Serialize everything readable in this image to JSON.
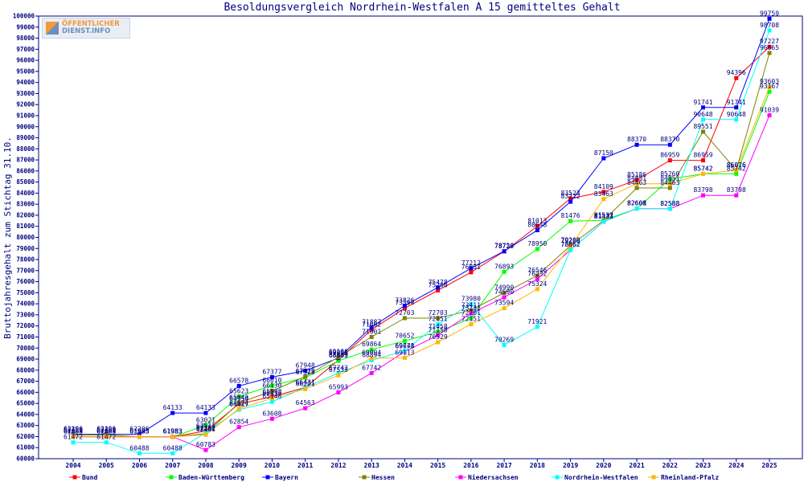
{
  "chart_data": {
    "type": "line",
    "title": "Besoldungsvergleich Nordrhein-Westfalen A 15 gemitteltes Gehalt",
    "ylabel": "Bruttojahresgehalt zum Stichtag 31.10.",
    "xlabel": "",
    "ylim": [
      60000,
      100000
    ],
    "ytick_step": 1000,
    "grid": false,
    "legend_position": "bottom",
    "x": [
      "2004",
      "2005",
      "2006",
      "2007",
      "2008",
      "2009",
      "2010",
      "2011",
      "2012",
      "2013",
      "2014",
      "2015",
      "2016",
      "2017",
      "2018",
      "2019",
      "2020",
      "2021",
      "2022",
      "2023",
      "2024",
      "2025"
    ],
    "series": [
      {
        "name": "Bund",
        "color": "#ff0000",
        "values": [
          61983,
          61983,
          61983,
          61983,
          62511,
          64954,
          65598,
          66431,
          68909,
          71662,
          73594,
          75206,
          76851,
          78729,
          81013,
          83523,
          84109,
          85186,
          86959,
          86959,
          94396,
          97227
        ]
      },
      {
        "name": "Baden-Württemberg",
        "color": "#00ff00",
        "values": [
          62004,
          62004,
          61983,
          61983,
          63021,
          65623,
          66610,
          67328,
          68843,
          69864,
          70652,
          71458,
          72701,
          76893,
          78950,
          81476,
          81537,
          82601,
          85260,
          85742,
          85742,
          93167
        ]
      },
      {
        "name": "Bayern",
        "color": "#0000ff",
        "values": [
          62206,
          62206,
          62206,
          64133,
          64133,
          66578,
          67377,
          67948,
          69095,
          71887,
          73826,
          75478,
          77212,
          78750,
          80648,
          83222,
          87150,
          88370,
          88370,
          91741,
          91741,
          99759
        ]
      },
      {
        "name": "Hessen",
        "color": "#808000",
        "values": [
          62150,
          62150,
          61983,
          61983,
          62262,
          65040,
          66130,
          67429,
          69180,
          71001,
          72703,
          72703,
          73411,
          74990,
          76546,
          79269,
          81532,
          84463,
          84463,
          89551,
          86076,
          96665
        ]
      },
      {
        "name": "Niedersachsen",
        "color": "#ff00ff",
        "values": [
          61983,
          61983,
          61983,
          61983,
          60783,
          62854,
          63608,
          64563,
          65993,
          67742,
          69678,
          71158,
          73131,
          74590,
          76232,
          78862,
          81433,
          82608,
          82588,
          83798,
          83798,
          91039
        ]
      },
      {
        "name": "Nordrhein-Westfalen",
        "color": "#00ffff",
        "values": [
          61472,
          61472,
          60488,
          60488,
          62362,
          64427,
          65146,
          66431,
          67742,
          68894,
          69741,
          72151,
          73980,
          70269,
          71921,
          78862,
          81433,
          82608,
          82588,
          90648,
          90648,
          98708
        ]
      },
      {
        "name": "Rheinland-Pfalz",
        "color": "#ffb800",
        "values": [
          61983,
          61983,
          61983,
          61983,
          62161,
          64524,
          65456,
          66291,
          67533,
          69094,
          69113,
          70529,
          72151,
          73594,
          75324,
          79200,
          83463,
          84851,
          84851,
          85742,
          86076,
          93603
        ]
      }
    ]
  },
  "logo": {
    "line1": "ÖFFENTLICHER",
    "line2": "DIENST.INFO"
  }
}
